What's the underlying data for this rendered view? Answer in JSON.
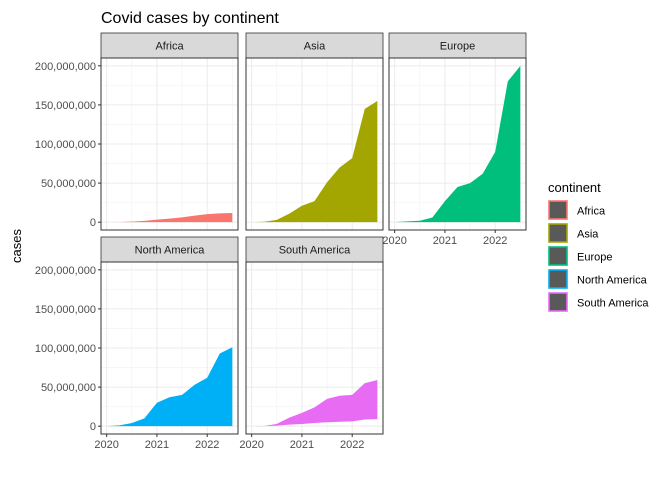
{
  "chart_data": {
    "type": "area",
    "title": "Covid cases by continent",
    "xlabel": "",
    "ylabel": "cases",
    "x_ticks": [
      "2020",
      "2021",
      "2022"
    ],
    "y_ticks": [
      "0",
      "50,000,000",
      "100,000,000",
      "150,000,000",
      "200,000,000"
    ],
    "ylim": [
      0,
      210000000
    ],
    "xlim": [
      "2020-01",
      "2022-07"
    ],
    "grid": true,
    "legend": {
      "title": "continent",
      "placement": "right"
    },
    "x": [
      "2020-01",
      "2020-04",
      "2020-07",
      "2020-10",
      "2021-01",
      "2021-04",
      "2021-07",
      "2021-10",
      "2022-01",
      "2022-04",
      "2022-07"
    ],
    "series": [
      {
        "name": "Africa",
        "color": "#F8766D",
        "upper": [
          0,
          100000,
          700000,
          1700000,
          3200000,
          4500000,
          6200000,
          8400000,
          10300000,
          11300000,
          11800000
        ],
        "lower": [
          0,
          0,
          0,
          0,
          0,
          0,
          0,
          0,
          0,
          0,
          0
        ]
      },
      {
        "name": "Asia",
        "color": "#A3A500",
        "upper": [
          0,
          500000,
          3000000,
          11000000,
          21000000,
          27000000,
          51000000,
          70000000,
          82000000,
          145000000,
          155000000
        ],
        "lower": [
          0,
          0,
          0,
          0,
          0,
          0,
          0,
          0,
          0,
          0,
          0
        ]
      },
      {
        "name": "Europe",
        "color": "#00BF7D",
        "upper": [
          0,
          1000000,
          1800000,
          6000000,
          27000000,
          45000000,
          50000000,
          62000000,
          90000000,
          180000000,
          200000000
        ],
        "lower": [
          0,
          0,
          0,
          0,
          0,
          0,
          0,
          0,
          0,
          0,
          0
        ]
      },
      {
        "name": "North America",
        "color": "#00B0F6",
        "upper": [
          0,
          1000000,
          4000000,
          10000000,
          30000000,
          37000000,
          40000000,
          53000000,
          62000000,
          93000000,
          101000000
        ],
        "lower": [
          0,
          0,
          0,
          0,
          0,
          0,
          0,
          0,
          0,
          0,
          0
        ]
      },
      {
        "name": "South America",
        "color": "#E76BF3",
        "upper": [
          0,
          200000,
          3000000,
          11000000,
          17000000,
          24000000,
          35000000,
          39000000,
          40000000,
          55000000,
          59000000
        ],
        "lower": [
          0,
          0,
          700000,
          2000000,
          2800000,
          4000000,
          5000000,
          5600000,
          6200000,
          8500000,
          9000000
        ]
      }
    ]
  }
}
